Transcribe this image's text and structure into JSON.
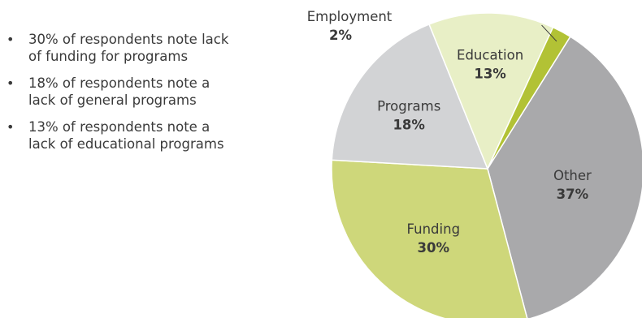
{
  "bullets": [
    "30% of respondents note lack of funding for programs",
    "18% of respondents note a lack of general programs",
    "13% of respondents note a lack of educational programs"
  ],
  "chart_data": {
    "type": "pie",
    "categories": [
      "Other",
      "Funding",
      "Programs",
      "Education",
      "Employment"
    ],
    "values": [
      37,
      30,
      18,
      13,
      2
    ],
    "value_labels": [
      "37%",
      "30%",
      "18%",
      "13%",
      "2%"
    ],
    "colors": [
      "#a9a9ab",
      "#ced77a",
      "#d2d3d5",
      "#e8efc6",
      "#b2c235"
    ],
    "title": "",
    "legend": "none"
  }
}
